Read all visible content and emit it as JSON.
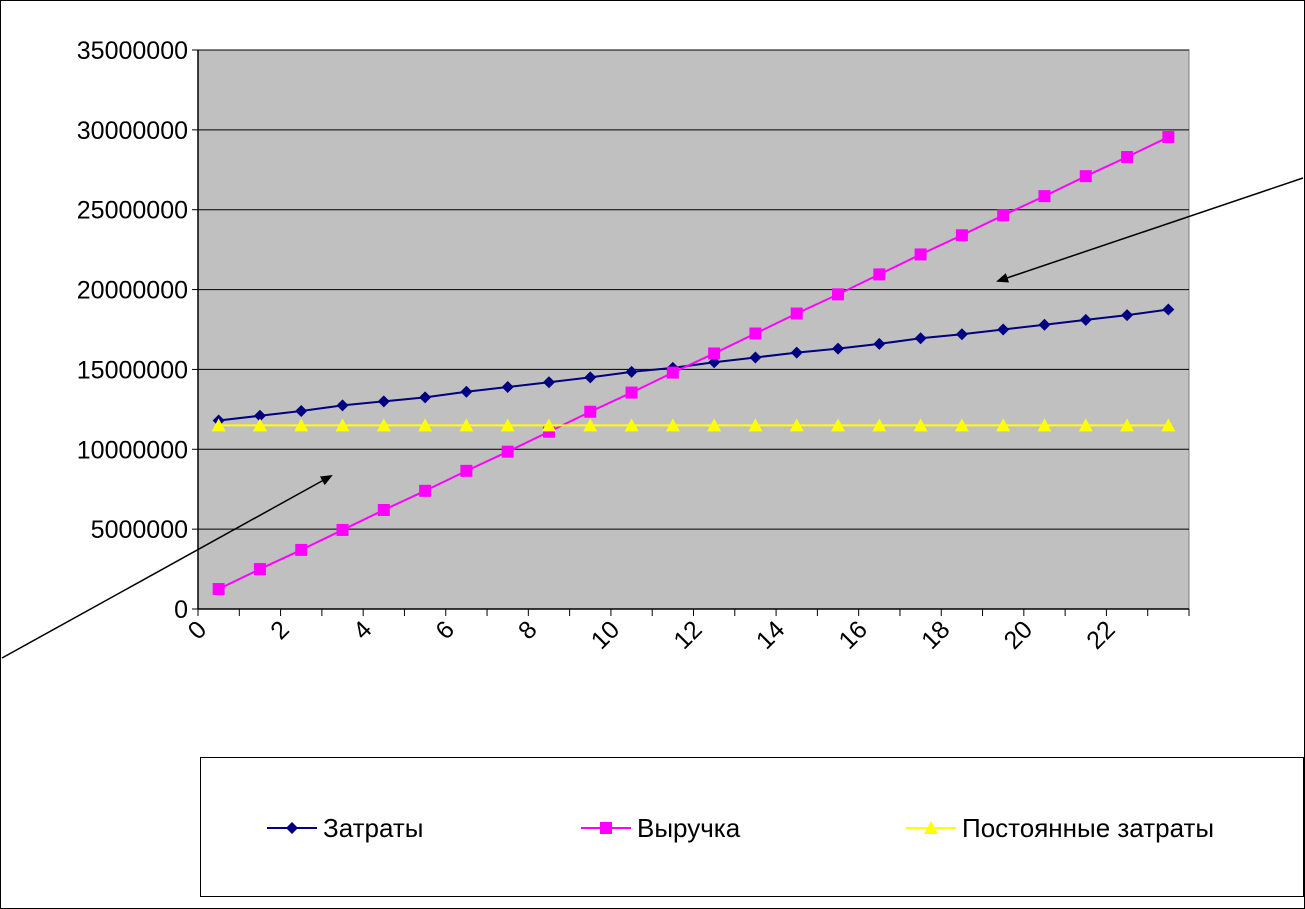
{
  "chart_data": {
    "type": "line",
    "title": "",
    "xlabel": "",
    "ylabel": "",
    "x": [
      1,
      2,
      3,
      4,
      5,
      6,
      7,
      8,
      9,
      10,
      11,
      12,
      13,
      14,
      15,
      16,
      17,
      18,
      19,
      20,
      21,
      22,
      23,
      24
    ],
    "x_ticks": [
      "0",
      "2",
      "4",
      "6",
      "8",
      "10",
      "12",
      "14",
      "16",
      "18",
      "20",
      "22"
    ],
    "y_ticks": [
      "0",
      "5000000",
      "10000000",
      "15000000",
      "20000000",
      "25000000",
      "30000000",
      "35000000"
    ],
    "ylim": [
      0,
      35000000
    ],
    "grid": "horizontal",
    "legend_position": "bottom",
    "plot_background": "#C0C0C0",
    "series": [
      {
        "name": "Затраты",
        "color": "#000080",
        "marker": "diamond",
        "values": [
          11800000,
          12100000,
          12400000,
          12750000,
          13000000,
          13250000,
          13600000,
          13900000,
          14200000,
          14500000,
          14850000,
          15100000,
          15450000,
          15750000,
          16050000,
          16300000,
          16600000,
          16950000,
          17200000,
          17500000,
          17800000,
          18100000,
          18400000,
          18750000
        ]
      },
      {
        "name": "Выручка",
        "color": "#FF00FF",
        "marker": "square",
        "values": [
          1250000,
          2500000,
          3700000,
          4950000,
          6200000,
          7400000,
          8650000,
          9850000,
          11100000,
          12350000,
          13550000,
          14800000,
          16000000,
          17250000,
          18500000,
          19700000,
          20950000,
          22200000,
          23400000,
          24650000,
          25850000,
          27100000,
          28300000,
          29550000
        ]
      },
      {
        "name": "Постоянные затраты",
        "color": "#FFFF00",
        "marker": "triangle",
        "values": [
          11500000,
          11500000,
          11500000,
          11500000,
          11500000,
          11500000,
          11500000,
          11500000,
          11500000,
          11500000,
          11500000,
          11500000,
          11500000,
          11500000,
          11500000,
          11500000,
          11500000,
          11500000,
          11500000,
          11500000,
          11500000,
          11500000,
          11500000,
          11500000
        ]
      }
    ]
  }
}
